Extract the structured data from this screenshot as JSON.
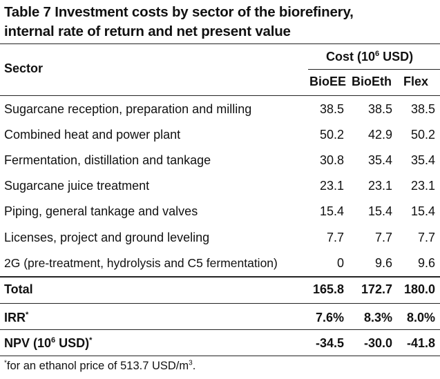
{
  "table": {
    "title_line1": "Table 7  Investment costs by sector of the biorefinery,",
    "title_line2": "internal rate of return and net present value",
    "header": {
      "sector": "Sector",
      "cost_prefix": "Cost (10",
      "cost_sup": "6",
      "cost_suffix": " USD)",
      "columns": [
        "BioEE",
        "BioEth",
        "Flex"
      ]
    },
    "rows": [
      {
        "sector": "Sugarcane reception, preparation and milling",
        "values": [
          "38.5",
          "38.5",
          "38.5"
        ]
      },
      {
        "sector": "Combined heat and power plant",
        "values": [
          "50.2",
          "42.9",
          "50.2"
        ]
      },
      {
        "sector": "Fermentation, distillation and tankage",
        "values": [
          "30.8",
          "35.4",
          "35.4"
        ]
      },
      {
        "sector": "Sugarcane juice treatment",
        "values": [
          "23.1",
          "23.1",
          "23.1"
        ]
      },
      {
        "sector": "Piping, general tankage and valves",
        "values": [
          "15.4",
          "15.4",
          "15.4"
        ]
      },
      {
        "sector": "Licenses, project and ground leveling",
        "values": [
          "7.7",
          "7.7",
          "7.7"
        ]
      },
      {
        "sector": "2G (pre-treatment, hydrolysis and C5 fermentation)",
        "values": [
          "0",
          "9.6",
          "9.6"
        ]
      }
    ],
    "total": {
      "label": "Total",
      "values": [
        "165.8",
        "172.7",
        "180.0"
      ]
    },
    "irr": {
      "label": "IRR",
      "sup": "*",
      "values": [
        "7.6%",
        "8.3%",
        "8.0%"
      ]
    },
    "npv": {
      "label_prefix": "NPV (10",
      "label_sup": "6",
      "label_suffix": " USD)",
      "sup2": "*",
      "values": [
        "-34.5",
        "-30.0",
        "-41.8"
      ]
    },
    "footnote": {
      "mark": "*",
      "text": "for an ethanol price of 513.7 USD/m",
      "unit_sup": "3",
      "end": "."
    }
  }
}
